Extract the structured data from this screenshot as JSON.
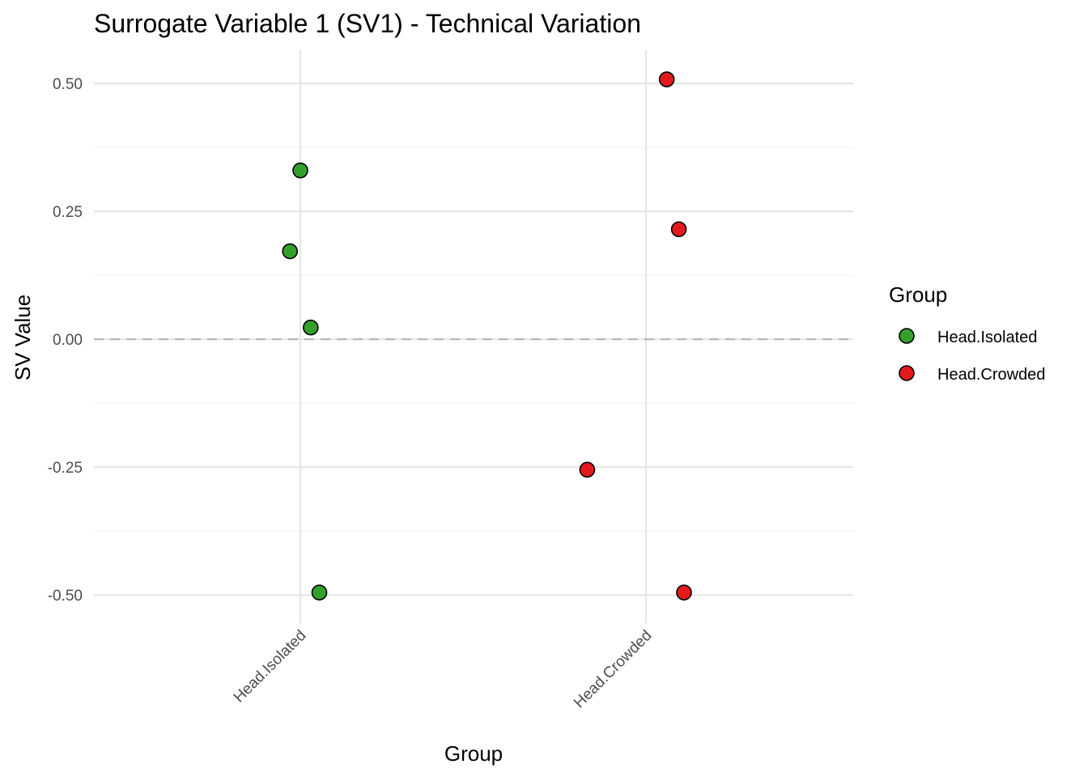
{
  "chart_data": {
    "type": "scatter",
    "title": "Surrogate Variable 1 (SV1) - Technical Variation",
    "xlabel": "Group",
    "ylabel": "SV Value",
    "categories": [
      "Head.Isolated",
      "Head.Crowded"
    ],
    "ylim": [
      -0.555,
      0.565
    ],
    "yticks": [
      {
        "value": 0.5,
        "label": "0.50"
      },
      {
        "value": 0.25,
        "label": "0.25"
      },
      {
        "value": 0.0,
        "label": "0.00"
      },
      {
        "value": -0.25,
        "label": "-0.25"
      },
      {
        "value": -0.5,
        "label": "-0.50"
      }
    ],
    "reference_line": 0,
    "grid": true,
    "series": [
      {
        "name": "Head.Isolated",
        "color": "#33a02c",
        "points": [
          {
            "category": "Head.Isolated",
            "jitter": 0.0,
            "value": 0.33
          },
          {
            "category": "Head.Isolated",
            "jitter": -0.03,
            "value": 0.172
          },
          {
            "category": "Head.Isolated",
            "jitter": 0.03,
            "value": 0.023
          },
          {
            "category": "Head.Isolated",
            "jitter": 0.055,
            "value": -0.495
          }
        ]
      },
      {
        "name": "Head.Crowded",
        "color": "#e31a1c",
        "points": [
          {
            "category": "Head.Crowded",
            "jitter": 0.06,
            "value": 0.508
          },
          {
            "category": "Head.Crowded",
            "jitter": 0.095,
            "value": 0.215
          },
          {
            "category": "Head.Crowded",
            "jitter": -0.17,
            "value": -0.255
          },
          {
            "category": "Head.Crowded",
            "jitter": 0.11,
            "value": -0.495
          }
        ]
      }
    ],
    "legend": {
      "title": "Group",
      "position": "right",
      "items": [
        {
          "label": "Head.Isolated",
          "color": "#33a02c"
        },
        {
          "label": "Head.Crowded",
          "color": "#e31a1c"
        }
      ]
    }
  }
}
